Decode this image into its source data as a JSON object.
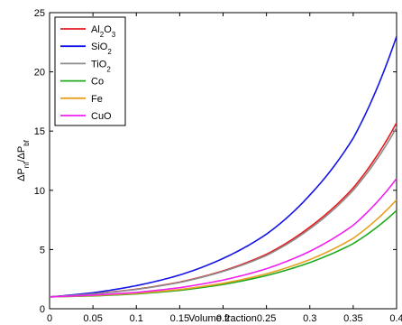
{
  "chart_data": {
    "type": "line",
    "xlabel": "Volume fraction",
    "ylabel": {
      "main": "ΔP",
      "sub1": "nf",
      "mid": "/ΔP",
      "sub2": "bf"
    },
    "xlim": [
      0,
      0.4
    ],
    "ylim": [
      0,
      25
    ],
    "x_ticks": [
      "0",
      "0.05",
      "0.1",
      "0.15",
      "0.2",
      "0.25",
      "0.3",
      "0.35",
      "0.4"
    ],
    "y_ticks": [
      "0",
      "5",
      "10",
      "15",
      "20",
      "25"
    ],
    "grid": false,
    "legend_position": "top-left",
    "x": [
      0,
      0.05,
      0.1,
      0.15,
      0.2,
      0.25,
      0.3,
      0.35,
      0.4
    ],
    "series": [
      {
        "name": "Al2O3",
        "label_parts": [
          [
            "Al",
            ""
          ],
          [
            "2",
            "sub"
          ],
          [
            "O",
            ""
          ],
          [
            "3",
            "sub"
          ]
        ],
        "color": "#e8191d",
        "values": [
          1,
          1.26,
          1.65,
          2.25,
          3.2,
          4.6,
          6.9,
          10.2,
          15.7
        ]
      },
      {
        "name": "SiO2",
        "label_parts": [
          [
            "SiO",
            ""
          ],
          [
            "2",
            "sub"
          ]
        ],
        "color": "#1414e6",
        "values": [
          1,
          1.35,
          1.95,
          2.85,
          4.25,
          6.3,
          9.6,
          14.4,
          23.0
        ]
      },
      {
        "name": "TiO2",
        "label_parts": [
          [
            "TiO",
            ""
          ],
          [
            "2",
            "sub"
          ]
        ],
        "color": "#8c8c8c",
        "values": [
          1,
          1.25,
          1.63,
          2.22,
          3.15,
          4.5,
          6.75,
          10.0,
          15.3
        ]
      },
      {
        "name": "Co",
        "label_parts": [
          [
            "Co",
            ""
          ]
        ],
        "color": "#1faa1f",
        "values": [
          1,
          1.08,
          1.25,
          1.55,
          2.05,
          2.8,
          3.9,
          5.5,
          8.3
        ]
      },
      {
        "name": "Fe",
        "label_parts": [
          [
            "Fe",
            ""
          ]
        ],
        "color": "#e8a020",
        "values": [
          1,
          1.11,
          1.3,
          1.62,
          2.15,
          2.95,
          4.15,
          5.95,
          9.2
        ]
      },
      {
        "name": "CuO",
        "label_parts": [
          [
            "CuO",
            ""
          ]
        ],
        "color": "#f020f0",
        "values": [
          1,
          1.15,
          1.38,
          1.78,
          2.42,
          3.38,
          4.85,
          7.05,
          11.0
        ]
      }
    ]
  }
}
